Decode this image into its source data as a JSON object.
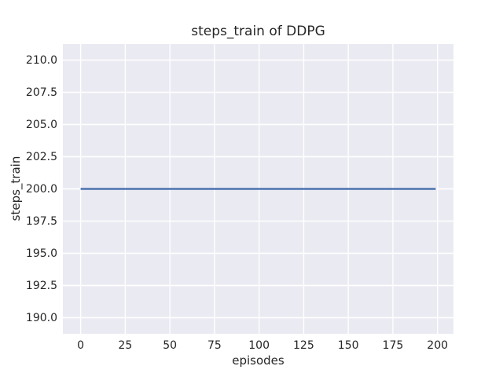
{
  "chart_data": {
    "type": "line",
    "title": "steps_train of DDPG",
    "xlabel": "episodes",
    "ylabel": "steps_train",
    "xlim": [
      -9.95,
      208.95
    ],
    "ylim": [
      188.75,
      211.25
    ],
    "xticks": {
      "values": [
        0,
        25,
        50,
        75,
        100,
        125,
        150,
        175,
        200
      ],
      "labels": [
        "0",
        "25",
        "50",
        "75",
        "100",
        "125",
        "150",
        "175",
        "200"
      ]
    },
    "yticks": {
      "values": [
        190.0,
        192.5,
        195.0,
        197.5,
        200.0,
        202.5,
        205.0,
        207.5,
        210.0
      ],
      "labels": [
        "190.0",
        "192.5",
        "195.0",
        "197.5",
        "200.0",
        "202.5",
        "205.0",
        "207.5",
        "210.0"
      ]
    },
    "grid": true,
    "legend": false,
    "series": [
      {
        "name": "steps_train",
        "color": "#4C72B0",
        "line_width": 2.5,
        "x": [
          0,
          199
        ],
        "y": [
          200,
          200
        ],
        "note": "constant value 200 for all episodes 0-199"
      }
    ],
    "style": {
      "figure_background": "#FFFFFF",
      "plot_background": "#EAEAF2",
      "grid_color": "#FFFFFF",
      "text_color": "#262626"
    }
  }
}
